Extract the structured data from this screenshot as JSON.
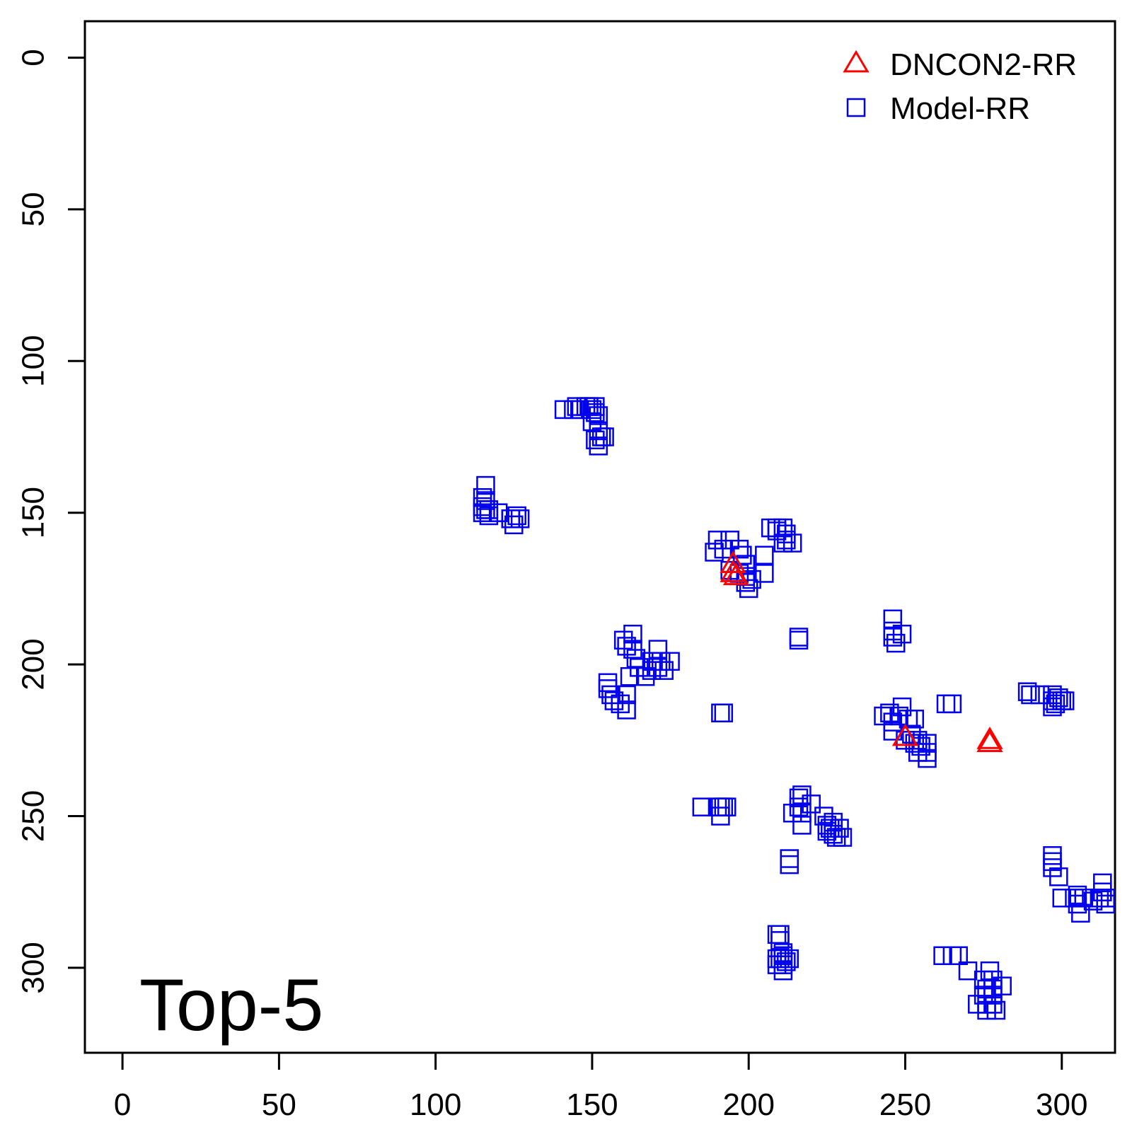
{
  "chart_data": {
    "type": "scatter",
    "title": "",
    "xlabel": "",
    "ylabel": "",
    "xlim": [
      -12,
      317
    ],
    "ylim": [
      -12,
      328
    ],
    "y_reversed": true,
    "grid": false,
    "x_ticks": [
      0,
      50,
      100,
      150,
      200,
      250,
      300
    ],
    "y_ticks": [
      0,
      50,
      100,
      150,
      200,
      250,
      300
    ],
    "x_tick_labels": [
      "0",
      "50",
      "100",
      "150",
      "200",
      "250",
      "300"
    ],
    "y_tick_labels": [
      "0",
      "50",
      "100",
      "150",
      "200",
      "250",
      "300"
    ],
    "annotation": "Top-5",
    "legend": {
      "position": "top-right"
    },
    "series": [
      {
        "name": "DNCON2-RR",
        "marker": "triangle",
        "color": "#ff0000",
        "points": [
          [
            195,
            167
          ],
          [
            195,
            170
          ],
          [
            196,
            171
          ],
          [
            250,
            224
          ],
          [
            277,
            225
          ],
          [
            277,
            226
          ]
        ]
      },
      {
        "name": "Model-RR",
        "marker": "square",
        "color": "#0000ee",
        "points": [
          [
            141,
            116
          ],
          [
            144,
            116
          ],
          [
            145,
            115
          ],
          [
            146,
            116
          ],
          [
            148,
            115
          ],
          [
            149,
            115
          ],
          [
            150,
            116
          ],
          [
            151,
            115
          ],
          [
            151,
            117
          ],
          [
            150,
            120
          ],
          [
            152,
            118
          ],
          [
            152,
            123
          ],
          [
            153,
            125
          ],
          [
            151,
            126
          ],
          [
            154,
            125
          ],
          [
            152,
            128
          ],
          [
            116,
            141
          ],
          [
            115,
            145
          ],
          [
            116,
            146
          ],
          [
            115,
            148
          ],
          [
            116,
            149
          ],
          [
            115,
            150
          ],
          [
            117,
            149
          ],
          [
            117,
            151
          ],
          [
            120,
            150
          ],
          [
            124,
            152
          ],
          [
            126,
            151
          ],
          [
            125,
            154
          ],
          [
            124,
            152
          ],
          [
            127,
            152
          ],
          [
            190,
            159
          ],
          [
            194,
            159
          ],
          [
            189,
            163
          ],
          [
            192,
            162
          ],
          [
            197,
            162
          ],
          [
            198,
            164
          ],
          [
            199,
            167
          ],
          [
            194,
            169
          ],
          [
            197,
            170
          ],
          [
            199,
            171
          ],
          [
            199,
            173
          ],
          [
            201,
            172
          ],
          [
            200,
            175
          ],
          [
            205,
            164
          ],
          [
            205,
            170
          ],
          [
            207,
            155
          ],
          [
            209,
            156
          ],
          [
            211,
            155
          ],
          [
            212,
            157
          ],
          [
            212,
            159
          ],
          [
            214,
            160
          ],
          [
            211,
            160
          ],
          [
            209,
            155
          ],
          [
            160,
            192
          ],
          [
            161,
            194
          ],
          [
            163,
            190
          ],
          [
            163,
            195
          ],
          [
            164,
            198
          ],
          [
            162,
            204
          ],
          [
            165,
            201
          ],
          [
            167,
            204
          ],
          [
            171,
            195
          ],
          [
            172,
            199
          ],
          [
            171,
            201
          ],
          [
            173,
            202
          ],
          [
            175,
            199
          ],
          [
            169,
            202
          ],
          [
            169,
            199
          ],
          [
            155,
            206
          ],
          [
            155,
            208
          ],
          [
            156,
            210
          ],
          [
            157,
            212
          ],
          [
            159,
            213
          ],
          [
            161,
            210
          ],
          [
            161,
            215
          ],
          [
            191,
            216
          ],
          [
            192,
            216
          ],
          [
            216,
            191
          ],
          [
            216,
            192
          ],
          [
            246,
            185
          ],
          [
            246,
            189
          ],
          [
            246,
            191
          ],
          [
            247,
            193
          ],
          [
            249,
            190
          ],
          [
            243,
            217
          ],
          [
            245,
            216
          ],
          [
            246,
            219
          ],
          [
            248,
            217
          ],
          [
            249,
            214
          ],
          [
            251,
            218
          ],
          [
            253,
            218
          ],
          [
            252,
            223
          ],
          [
            254,
            225
          ],
          [
            255,
            227
          ],
          [
            254,
            229
          ],
          [
            257,
            226
          ],
          [
            257,
            229
          ],
          [
            257,
            231
          ],
          [
            253,
            226
          ],
          [
            250,
            225
          ],
          [
            246,
            222
          ],
          [
            263,
            213
          ],
          [
            265,
            213
          ],
          [
            289,
            209
          ],
          [
            290,
            210
          ],
          [
            293,
            210
          ],
          [
            297,
            210
          ],
          [
            297,
            212
          ],
          [
            298,
            213
          ],
          [
            299,
            211
          ],
          [
            300,
            212
          ],
          [
            301,
            212
          ],
          [
            297,
            214
          ],
          [
            185,
            247
          ],
          [
            190,
            247
          ],
          [
            191,
            247
          ],
          [
            192,
            247
          ],
          [
            191,
            250
          ],
          [
            193,
            247
          ],
          [
            214,
            249
          ],
          [
            216,
            244
          ],
          [
            217,
            243
          ],
          [
            216,
            247
          ],
          [
            217,
            249
          ],
          [
            217,
            253
          ],
          [
            220,
            246
          ],
          [
            224,
            250
          ],
          [
            225,
            253
          ],
          [
            225,
            255
          ],
          [
            226,
            254
          ],
          [
            227,
            252
          ],
          [
            227,
            256
          ],
          [
            229,
            254
          ],
          [
            230,
            257
          ],
          [
            228,
            257
          ],
          [
            213,
            264
          ],
          [
            213,
            266
          ],
          [
            297,
            263
          ],
          [
            297,
            265
          ],
          [
            297,
            267
          ],
          [
            299,
            270
          ],
          [
            300,
            277
          ],
          [
            304,
            277
          ],
          [
            305,
            276
          ],
          [
            305,
            279
          ],
          [
            306,
            282
          ],
          [
            307,
            277
          ],
          [
            310,
            278
          ],
          [
            312,
            277
          ],
          [
            313,
            275
          ],
          [
            313,
            272
          ],
          [
            314,
            277
          ],
          [
            314,
            279
          ],
          [
            209,
            289
          ],
          [
            210,
            289
          ],
          [
            210,
            291
          ],
          [
            211,
            295
          ],
          [
            209,
            297
          ],
          [
            209,
            299
          ],
          [
            210,
            297
          ],
          [
            211,
            296
          ],
          [
            211,
            299
          ],
          [
            211,
            301
          ],
          [
            212,
            298
          ],
          [
            213,
            297
          ],
          [
            262,
            296
          ],
          [
            265,
            296
          ],
          [
            267,
            296
          ],
          [
            270,
            301
          ],
          [
            273,
            312
          ],
          [
            275,
            304
          ],
          [
            275,
            309
          ],
          [
            276,
            312
          ],
          [
            276,
            314
          ],
          [
            276,
            307
          ],
          [
            277,
            301
          ],
          [
            278,
            304
          ],
          [
            278,
            307
          ],
          [
            278,
            309
          ],
          [
            278,
            312
          ],
          [
            279,
            314
          ],
          [
            281,
            306
          ]
        ]
      }
    ]
  }
}
